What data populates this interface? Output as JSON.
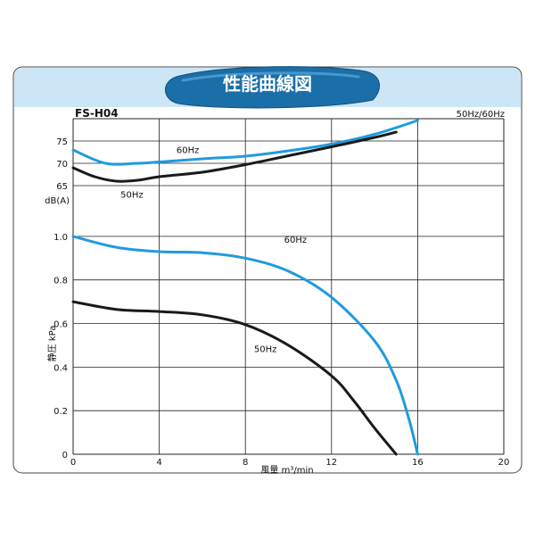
{
  "banner": {
    "title": "性能曲線図"
  },
  "model": "FS-H04",
  "freq_note": "50Hz/60Hz",
  "colors": {
    "blue": "#1f9be0",
    "black": "#1a1a1a",
    "banner_bg": "#cde6f6",
    "pill": "#1b6fa8",
    "grid": "#222222"
  },
  "chart_data": [
    {
      "type": "line",
      "title": "",
      "ylabel": "dB(A)",
      "xlabel": "",
      "yticks": [
        65,
        70,
        75
      ],
      "ylim": [
        64.6,
        80
      ],
      "xlim": [
        0,
        20
      ],
      "series": [
        {
          "name": "60Hz",
          "color": "#1f9be0",
          "points": [
            [
              0,
              73
            ],
            [
              1.5,
              70
            ],
            [
              3,
              70
            ],
            [
              4,
              70.3
            ],
            [
              6,
              71
            ],
            [
              8,
              71.6
            ],
            [
              10,
              72.8
            ],
            [
              12,
              74.3
            ],
            [
              14,
              76.5
            ],
            [
              16,
              79.6
            ]
          ]
        },
        {
          "name": "50Hz",
          "color": "#1a1a1a",
          "points": [
            [
              0,
              69
            ],
            [
              1,
              67
            ],
            [
              2,
              66
            ],
            [
              3,
              66.2
            ],
            [
              4,
              67
            ],
            [
              6,
              68
            ],
            [
              8,
              69.7
            ],
            [
              10,
              71.7
            ],
            [
              12,
              73.7
            ],
            [
              14,
              75.8
            ],
            [
              15,
              77
            ]
          ]
        }
      ],
      "labels": [
        {
          "text": "60Hz",
          "x": 4.8,
          "y": 72.3
        },
        {
          "text": "50Hz",
          "x": 2.2,
          "y": 62.3
        }
      ]
    },
    {
      "type": "line",
      "title": "",
      "ylabel": "静圧 kPa",
      "xlabel": "風量 m³/min",
      "xticks": [
        0,
        4,
        8,
        12,
        16,
        20
      ],
      "yticks": [
        0,
        0.2,
        0.4,
        0.6,
        0.8,
        1.0
      ],
      "ylim": [
        0,
        1.02
      ],
      "xlim": [
        0,
        20
      ],
      "series": [
        {
          "name": "60Hz",
          "color": "#1f9be0",
          "points": [
            [
              0,
              1.0
            ],
            [
              2,
              0.95
            ],
            [
              4,
              0.93
            ],
            [
              6,
              0.925
            ],
            [
              8,
              0.9
            ],
            [
              10,
              0.84
            ],
            [
              12,
              0.72
            ],
            [
              14,
              0.52
            ],
            [
              15,
              0.34
            ],
            [
              15.6,
              0.16
            ],
            [
              16,
              0
            ]
          ]
        },
        {
          "name": "50Hz",
          "color": "#1a1a1a",
          "points": [
            [
              0,
              0.7
            ],
            [
              2,
              0.665
            ],
            [
              4,
              0.655
            ],
            [
              6,
              0.64
            ],
            [
              8,
              0.595
            ],
            [
              10,
              0.5
            ],
            [
              12,
              0.36
            ],
            [
              13,
              0.25
            ],
            [
              14,
              0.12
            ],
            [
              15,
              0
            ]
          ]
        }
      ],
      "labels": [
        {
          "text": "60Hz",
          "x": 9.8,
          "y": 0.97
        },
        {
          "text": "50Hz",
          "x": 8.4,
          "y": 0.47
        }
      ]
    }
  ]
}
